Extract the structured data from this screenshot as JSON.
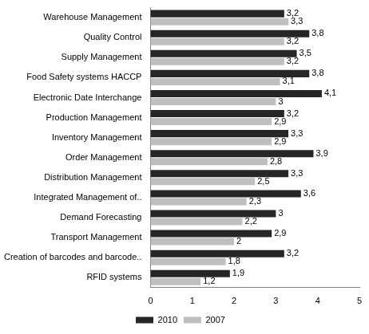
{
  "chart_data": {
    "type": "bar",
    "orientation": "horizontal",
    "categories": [
      "Warehouse Management",
      "Quality Control",
      "Supply Management",
      "Food Safety systems HACCP",
      "Electronic Date Interchange",
      "Production Management",
      "Inventory Management",
      "Order Management",
      "Distribution Management",
      "Integrated Management of..",
      "Demand Forecasting",
      "Transport Management",
      "Creation of barcodes and barcode..",
      "RFID systems"
    ],
    "series": [
      {
        "name": "2010",
        "color": "#262626",
        "values": [
          3.2,
          3.8,
          3.5,
          3.8,
          4.1,
          3.2,
          3.3,
          3.9,
          3.3,
          3.6,
          3,
          2.9,
          3.2,
          1.9
        ],
        "value_labels": [
          "3,2",
          "3,8",
          "3,5",
          "3,8",
          "4,1",
          "3,2",
          "3,3",
          "3,9",
          "3,3",
          "3,6",
          "3",
          "2,9",
          "3,2",
          "1,9"
        ]
      },
      {
        "name": "2007",
        "color": "#bfbfbf",
        "values": [
          3.3,
          3.2,
          3.2,
          3.1,
          3,
          2.9,
          2.9,
          2.8,
          2.5,
          2.3,
          2.2,
          2,
          1.8,
          1.2
        ],
        "value_labels": [
          "3,3",
          "3,2",
          "3,2",
          "3,1",
          "3",
          "2,9",
          "2,9",
          "2,8",
          "2,5",
          "2,3",
          "2,2",
          "2",
          "1,8",
          "1,2"
        ]
      }
    ],
    "xlim": [
      0,
      5
    ],
    "xticks": [
      0,
      1,
      2,
      3,
      4,
      5
    ],
    "grid": false,
    "legend": "bottom",
    "data_labels": true
  }
}
